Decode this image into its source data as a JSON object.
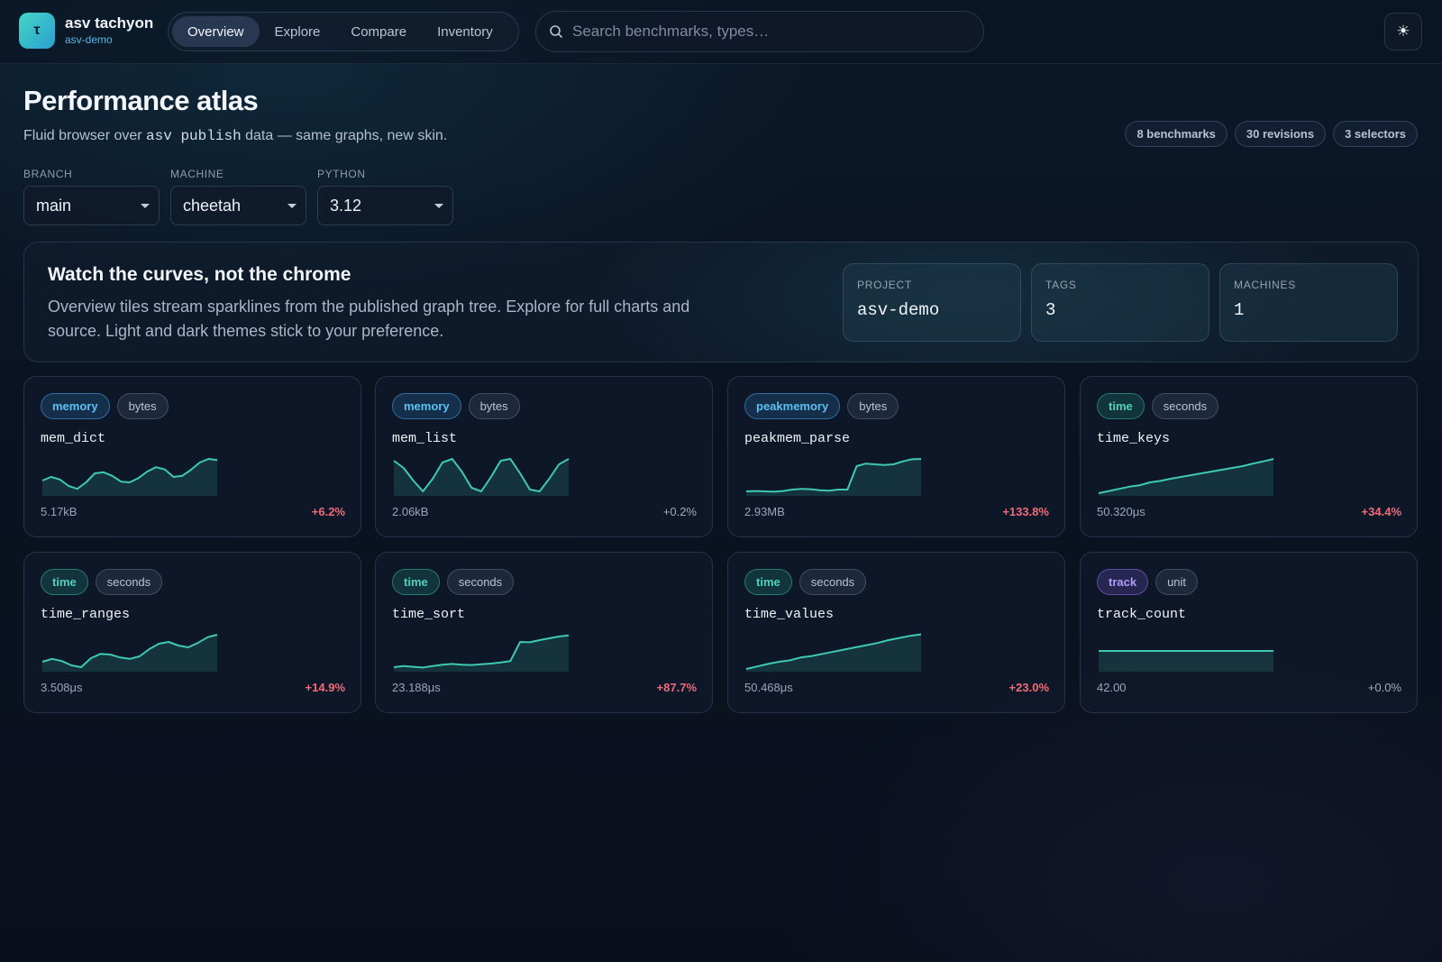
{
  "brand": {
    "name": "asv tachyon",
    "sub": "asv-demo",
    "logo_glyph": "τ"
  },
  "nav": {
    "tabs": [
      "Overview",
      "Explore",
      "Compare",
      "Inventory"
    ],
    "active": 0
  },
  "search": {
    "placeholder": "Search benchmarks, types…"
  },
  "theme_icon": "☀",
  "header": {
    "title": "Performance atlas",
    "sub_before": "Fluid browser over ",
    "sub_code": "asv publish",
    "sub_after": " data — same graphs, new skin.",
    "counts": [
      "8 benchmarks",
      "30 revisions",
      "3 selectors"
    ]
  },
  "selectors": [
    {
      "label": "BRANCH",
      "value": "main"
    },
    {
      "label": "MACHINE",
      "value": "cheetah"
    },
    {
      "label": "PYTHON",
      "value": "3.12"
    }
  ],
  "hero": {
    "title": "Watch the curves, not the chrome",
    "description": "Overview tiles stream sparklines from the published graph tree. Explore for full charts and source. Light and dark themes stick to your preference.",
    "stats": [
      {
        "label": "PROJECT",
        "value": "asv-demo"
      },
      {
        "label": "TAGS",
        "value": "3"
      },
      {
        "label": "MACHINES",
        "value": "1"
      }
    ]
  },
  "colors": {
    "spark_line": "#3ec9b4",
    "spark_fill": "rgba(62,201,180,0.16)",
    "regression": "#f06b78"
  },
  "cards": [
    {
      "type": "memory",
      "unit": "bytes",
      "name": "mem_dict",
      "value": "5.17kB",
      "change": "+6.2%",
      "trend": "up",
      "spark": [
        0.35,
        0.45,
        0.38,
        0.2,
        0.12,
        0.3,
        0.55,
        0.58,
        0.48,
        0.32,
        0.3,
        0.42,
        0.6,
        0.72,
        0.66,
        0.45,
        0.48,
        0.65,
        0.85,
        0.95,
        0.92
      ]
    },
    {
      "type": "memory",
      "unit": "bytes",
      "name": "mem_list",
      "value": "2.06kB",
      "change": "+0.2%",
      "trend": "flat",
      "spark": [
        0.9,
        0.7,
        0.35,
        0.05,
        0.4,
        0.85,
        0.95,
        0.6,
        0.15,
        0.05,
        0.45,
        0.9,
        0.95,
        0.55,
        0.1,
        0.05,
        0.4,
        0.8,
        0.95
      ]
    },
    {
      "type": "peakmemory",
      "unit": "bytes",
      "name": "peakmem_parse",
      "value": "2.93MB",
      "change": "+133.8%",
      "trend": "up",
      "spark": [
        0.05,
        0.06,
        0.05,
        0.04,
        0.06,
        0.1,
        0.12,
        0.11,
        0.08,
        0.07,
        0.1,
        0.1,
        0.75,
        0.82,
        0.8,
        0.78,
        0.8,
        0.88,
        0.94,
        0.95
      ]
    },
    {
      "type": "time",
      "unit": "seconds",
      "name": "time_keys",
      "value": "50.320μs",
      "change": "+34.4%",
      "trend": "up",
      "spark": [
        0.0,
        0.06,
        0.12,
        0.18,
        0.22,
        0.3,
        0.34,
        0.4,
        0.45,
        0.5,
        0.55,
        0.6,
        0.65,
        0.7,
        0.75,
        0.82,
        0.88,
        0.95
      ]
    },
    {
      "type": "time",
      "unit": "seconds",
      "name": "time_ranges",
      "value": "3.508μs",
      "change": "+14.9%",
      "trend": "up",
      "spark": [
        0.2,
        0.28,
        0.22,
        0.1,
        0.05,
        0.3,
        0.42,
        0.4,
        0.32,
        0.28,
        0.35,
        0.55,
        0.7,
        0.75,
        0.65,
        0.6,
        0.72,
        0.88,
        0.95
      ]
    },
    {
      "type": "time",
      "unit": "seconds",
      "name": "time_sort",
      "value": "23.188μs",
      "change": "+87.7%",
      "trend": "up",
      "spark": [
        0.05,
        0.08,
        0.06,
        0.04,
        0.08,
        0.12,
        0.14,
        0.12,
        0.11,
        0.13,
        0.15,
        0.18,
        0.22,
        0.75,
        0.74,
        0.8,
        0.85,
        0.9,
        0.93
      ]
    },
    {
      "type": "time",
      "unit": "seconds",
      "name": "time_values",
      "value": "50.468μs",
      "change": "+23.0%",
      "trend": "up",
      "spark": [
        0.0,
        0.07,
        0.14,
        0.2,
        0.24,
        0.32,
        0.36,
        0.42,
        0.48,
        0.54,
        0.6,
        0.66,
        0.72,
        0.8,
        0.86,
        0.92,
        0.96
      ]
    },
    {
      "type": "track",
      "unit": "unit",
      "name": "track_count",
      "value": "42.00",
      "change": "+0.0%",
      "trend": "flat",
      "spark": [
        0.5,
        0.5,
        0.5,
        0.5,
        0.5,
        0.5,
        0.5,
        0.5,
        0.5,
        0.5
      ]
    }
  ]
}
